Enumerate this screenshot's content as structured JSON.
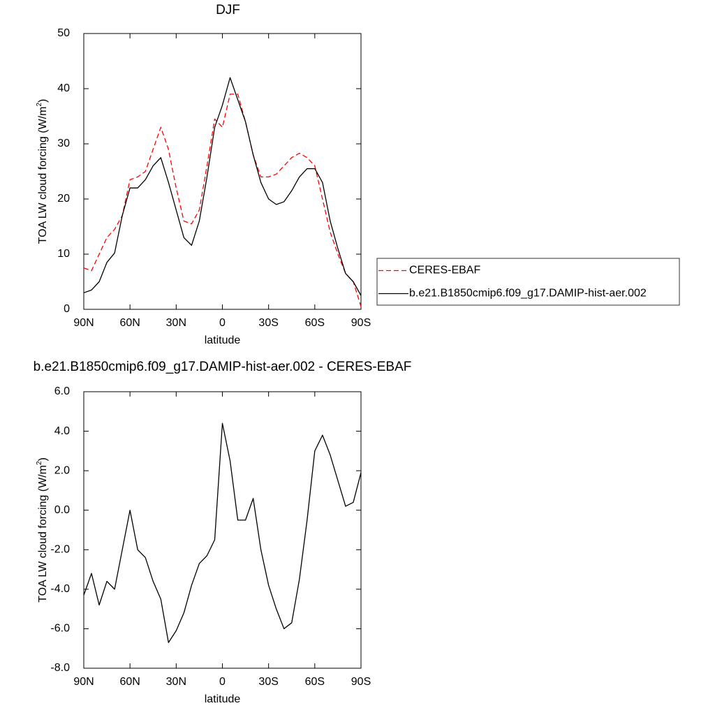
{
  "chart_data": [
    {
      "type": "line",
      "title": "DJF",
      "xlabel": "latitude",
      "ylabel": {
        "text": "TOA LW cloud forcing (W/m",
        "superscript": "2",
        "end": ")"
      },
      "x": [
        90,
        85,
        80,
        75,
        70,
        65,
        60,
        55,
        50,
        45,
        40,
        35,
        30,
        25,
        20,
        15,
        10,
        5,
        0,
        -5,
        -10,
        -15,
        -20,
        -25,
        -30,
        -35,
        -40,
        -45,
        -50,
        -55,
        -60,
        -65,
        -70,
        -75,
        -80,
        -85,
        -90
      ],
      "series": [
        {
          "name": "CERES-EBAF",
          "color": "#ff0000",
          "dash": true,
          "values": [
            7.5,
            7,
            10,
            13,
            14.5,
            17,
            23.5,
            24,
            25,
            29,
            33,
            29,
            22,
            16,
            15.5,
            18,
            26,
            34.5,
            33,
            39,
            39,
            34,
            28,
            24,
            24,
            24.5,
            26,
            27.5,
            28.3,
            27.5,
            26,
            20,
            14,
            10,
            6.5,
            5,
            0.5
          ]
        },
        {
          "name": "b.e21.B1850cmip6.f09_g17.DAMIP-hist-aer.002",
          "color": "#000000",
          "dash": false,
          "values": [
            3,
            3.5,
            5,
            8.5,
            10.2,
            17,
            22,
            22,
            23.5,
            26,
            27.5,
            23,
            18,
            13,
            11.6,
            16,
            24,
            33,
            37,
            42,
            38,
            34,
            28,
            23,
            20,
            19,
            19.5,
            21.5,
            24,
            25.5,
            25.5,
            23,
            16,
            11,
            6.5,
            5,
            2.5
          ]
        }
      ],
      "xlim": [
        90,
        -90
      ],
      "xticks": [
        {
          "value": 90,
          "label": "90N"
        },
        {
          "value": 60,
          "label": "60N"
        },
        {
          "value": 30,
          "label": "30N"
        },
        0,
        {
          "value": -30,
          "label": "30S"
        },
        {
          "value": -60,
          "label": "60S"
        },
        {
          "value": -90,
          "label": "90S"
        }
      ],
      "ylim": [
        0,
        50
      ],
      "yticks": [
        0,
        10,
        20,
        30,
        40,
        50
      ],
      "legend": "right"
    },
    {
      "type": "line",
      "title": "b.e21.B1850cmip6.f09_g17.DAMIP-hist-aer.002 - CERES-EBAF",
      "xlabel": "latitude",
      "ylabel": {
        "text": "TOA LW cloud forcing (W/m",
        "superscript": "2",
        "end": ")"
      },
      "x": [
        90,
        85,
        80,
        75,
        70,
        65,
        60,
        55,
        50,
        45,
        40,
        35,
        30,
        25,
        20,
        15,
        10,
        5,
        0,
        -5,
        -10,
        -15,
        -20,
        -25,
        -30,
        -35,
        -40,
        -45,
        -50,
        -55,
        -60,
        -65,
        -70,
        -75,
        -80,
        -85,
        -90
      ],
      "values": [
        -4.3,
        -3.2,
        -4.8,
        -3.6,
        -4.0,
        -2.0,
        0.0,
        -2.0,
        -2.4,
        -3.6,
        -4.5,
        -6.7,
        -6.1,
        -5.2,
        -3.8,
        -2.7,
        -2.3,
        -1.5,
        4.4,
        2.5,
        -0.5,
        -0.5,
        0.6,
        -2.0,
        -3.8,
        -5.0,
        -6.0,
        -5.7,
        -3.5,
        -0.5,
        3.0,
        3.8,
        2.8,
        1.5,
        0.2,
        0.4,
        1.9
      ],
      "color": "#000000",
      "xlim": [
        90,
        -90
      ],
      "xticks": [
        {
          "value": 90,
          "label": "90N"
        },
        {
          "value": 60,
          "label": "60N"
        },
        {
          "value": 30,
          "label": "30N"
        },
        0,
        {
          "value": -30,
          "label": "30S"
        },
        {
          "value": -60,
          "label": "60S"
        },
        {
          "value": -90,
          "label": "90S"
        }
      ],
      "ylim": [
        -8,
        6
      ],
      "yticks": [
        {
          "value": -8,
          "label": "-8.0"
        },
        {
          "value": -6,
          "label": "-6.0"
        },
        {
          "value": -4,
          "label": "-4.0"
        },
        {
          "value": -2,
          "label": "-2.0"
        },
        {
          "value": 0,
          "label": "0.0"
        },
        {
          "value": 2,
          "label": "2.0"
        },
        {
          "value": 4,
          "label": "4.0"
        },
        {
          "value": 6,
          "label": "6.0"
        }
      ]
    }
  ]
}
